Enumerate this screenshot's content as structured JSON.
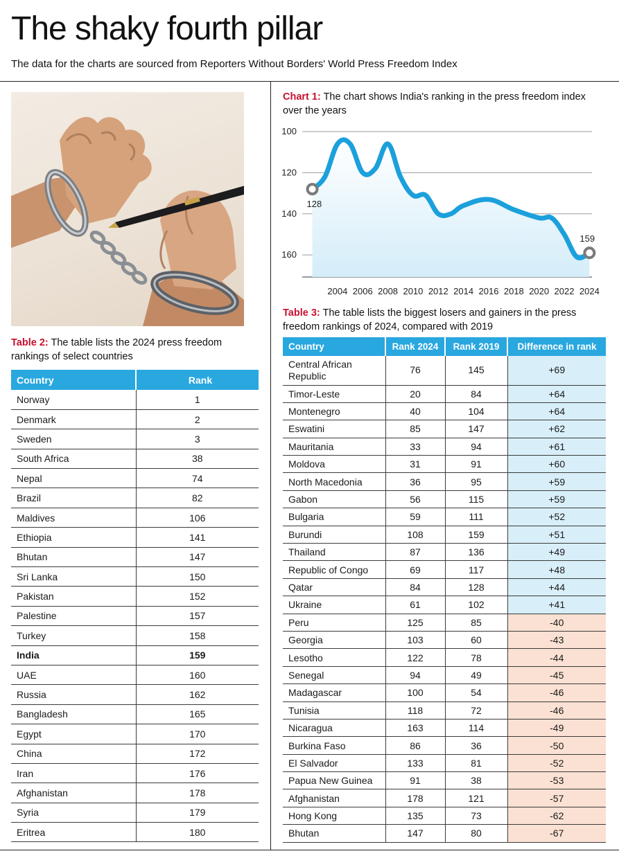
{
  "header": {
    "title": "The shaky fourth pillar",
    "subtitle": "The data for the charts are sourced from Reporters Without Borders' World Press Freedom Index"
  },
  "chart1": {
    "label": "Chart 1:",
    "caption": " The chart shows India's ranking in the press freedom index over the years"
  },
  "chart_data": {
    "type": "line",
    "ylim": [
      100,
      165
    ],
    "yticks": [
      100,
      120,
      140,
      160
    ],
    "y_inverted": true,
    "xticks": [
      2004,
      2006,
      2008,
      2010,
      2012,
      2014,
      2016,
      2018,
      2020,
      2022,
      2024
    ],
    "x": [
      2002,
      2003,
      2004,
      2005,
      2006,
      2007,
      2008,
      2009,
      2010,
      2011,
      2012,
      2013,
      2014,
      2016,
      2018,
      2020,
      2021,
      2022,
      2023,
      2024
    ],
    "values": [
      128,
      122,
      106,
      106,
      120,
      118,
      106,
      122,
      131,
      131,
      140,
      140,
      136,
      133,
      138,
      142,
      142,
      150,
      161,
      159
    ],
    "annotations": [
      {
        "x": 2002,
        "label": "128"
      },
      {
        "x": 2024,
        "label": "159"
      }
    ],
    "color": "#1ba0dc"
  },
  "table2": {
    "label": "Table 2:",
    "caption": " The table lists the 2024 press freedom rankings of select countries",
    "headers": [
      "Country",
      "Rank"
    ],
    "rows": [
      [
        "Norway",
        "1"
      ],
      [
        "Denmark",
        "2"
      ],
      [
        "Sweden",
        "3"
      ],
      [
        "South Africa",
        "38"
      ],
      [
        "Nepal",
        "74"
      ],
      [
        "Brazil",
        "82"
      ],
      [
        "Maldives",
        "106"
      ],
      [
        "Ethiopia",
        "141"
      ],
      [
        "Bhutan",
        "147"
      ],
      [
        "Sri Lanka",
        "150"
      ],
      [
        "Pakistan",
        "152"
      ],
      [
        "Palestine",
        "157"
      ],
      [
        "Turkey",
        "158"
      ],
      [
        "India",
        "159"
      ],
      [
        "UAE",
        "160"
      ],
      [
        "Russia",
        "162"
      ],
      [
        "Bangladesh",
        "165"
      ],
      [
        "Egypt",
        "170"
      ],
      [
        "China",
        "172"
      ],
      [
        "Iran",
        "176"
      ],
      [
        "Afghanistan",
        "178"
      ],
      [
        "Syria",
        "179"
      ],
      [
        "Eritrea",
        "180"
      ]
    ],
    "highlight": "India"
  },
  "table3": {
    "label": "Table 3:",
    "caption": " The table lists the biggest losers and gainers in the press freedom rankings of 2024, compared with 2019",
    "headers": [
      "Country",
      "Rank 2024",
      "Rank 2019",
      "Difference in rank"
    ],
    "rows": [
      [
        "Central African Republic",
        "76",
        "145",
        "+69"
      ],
      [
        "Timor-Leste",
        "20",
        "84",
        "+64"
      ],
      [
        "Montenegro",
        "40",
        "104",
        "+64"
      ],
      [
        "Eswatini",
        "85",
        "147",
        "+62"
      ],
      [
        "Mauritania",
        "33",
        "94",
        "+61"
      ],
      [
        "Moldova",
        "31",
        "91",
        "+60"
      ],
      [
        "North Macedonia",
        "36",
        "95",
        "+59"
      ],
      [
        "Gabon",
        "56",
        "115",
        "+59"
      ],
      [
        "Bulgaria",
        "59",
        "111",
        "+52"
      ],
      [
        "Burundi",
        "108",
        "159",
        "+51"
      ],
      [
        "Thailand",
        "87",
        "136",
        "+49"
      ],
      [
        "Republic of Congo",
        "69",
        "117",
        "+48"
      ],
      [
        "Qatar",
        "84",
        "128",
        "+44"
      ],
      [
        "Ukraine",
        "61",
        "102",
        "+41"
      ],
      [
        "Peru",
        "125",
        "85",
        "-40"
      ],
      [
        "Georgia",
        "103",
        "60",
        "-43"
      ],
      [
        "Lesotho",
        "122",
        "78",
        "-44"
      ],
      [
        "Senegal",
        "94",
        "49",
        "-45"
      ],
      [
        "Madagascar",
        "100",
        "54",
        "-46"
      ],
      [
        "Tunisia",
        "118",
        "72",
        "-46"
      ],
      [
        "Nicaragua",
        "163",
        "114",
        "-49"
      ],
      [
        "Burkina Faso",
        "86",
        "36",
        "-50"
      ],
      [
        "El Salvador",
        "133",
        "81",
        "-52"
      ],
      [
        "Papua New Guinea",
        "91",
        "38",
        "-53"
      ],
      [
        "Afghanistan",
        "178",
        "121",
        "-57"
      ],
      [
        "Hong Kong",
        "135",
        "73",
        "-62"
      ],
      [
        "Bhutan",
        "147",
        "80",
        "-67"
      ]
    ]
  },
  "photo": {
    "icon": "handcuffed-hands-with-pen"
  },
  "colors": {
    "accent": "#29a7df",
    "label_red": "#c8102e",
    "gain_bg": "#d8eef9",
    "loss_bg": "#fbe1d3"
  }
}
